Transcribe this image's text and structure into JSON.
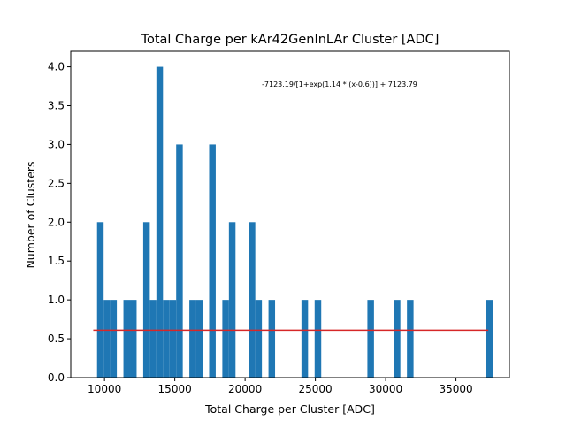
{
  "chart_data": {
    "type": "bar",
    "title": "Total Charge per kAr42GenInLAr Cluster [ADC]",
    "xlabel": "Total Charge per Cluster [ADC]",
    "ylabel": "Number of Clusters",
    "xlim": [
      7600,
      38800
    ],
    "ylim": [
      0,
      4.2
    ],
    "xticks": [
      10000,
      15000,
      20000,
      25000,
      30000,
      35000
    ],
    "yticks": [
      0.0,
      0.5,
      1.0,
      1.5,
      2.0,
      2.5,
      3.0,
      3.5,
      4.0
    ],
    "grid": false,
    "bar_color": "#1f77b4",
    "bin_width": 469,
    "bins": [
      {
        "x": 9470,
        "count": 2
      },
      {
        "x": 9939,
        "count": 1
      },
      {
        "x": 10408,
        "count": 1
      },
      {
        "x": 11346,
        "count": 1
      },
      {
        "x": 11815,
        "count": 1
      },
      {
        "x": 12753,
        "count": 2
      },
      {
        "x": 13222,
        "count": 1
      },
      {
        "x": 13691,
        "count": 4
      },
      {
        "x": 14160,
        "count": 1
      },
      {
        "x": 14629,
        "count": 1
      },
      {
        "x": 15098,
        "count": 3
      },
      {
        "x": 16036,
        "count": 1
      },
      {
        "x": 16505,
        "count": 1
      },
      {
        "x": 17443,
        "count": 3
      },
      {
        "x": 18381,
        "count": 1
      },
      {
        "x": 18850,
        "count": 2
      },
      {
        "x": 20257,
        "count": 2
      },
      {
        "x": 20726,
        "count": 1
      },
      {
        "x": 21664,
        "count": 1
      },
      {
        "x": 24009,
        "count": 1
      },
      {
        "x": 24947,
        "count": 1
      },
      {
        "x": 28699,
        "count": 1
      },
      {
        "x": 30575,
        "count": 1
      },
      {
        "x": 31513,
        "count": 1
      },
      {
        "x": 37141,
        "count": 1
      }
    ],
    "fit_line": {
      "color": "#d62728",
      "x": [
        9200,
        37300
      ],
      "y": [
        0.61,
        0.61
      ]
    },
    "annotation": "-7123.19/[1+exp(1.14 * (x-0.6))] + 7123.79"
  }
}
